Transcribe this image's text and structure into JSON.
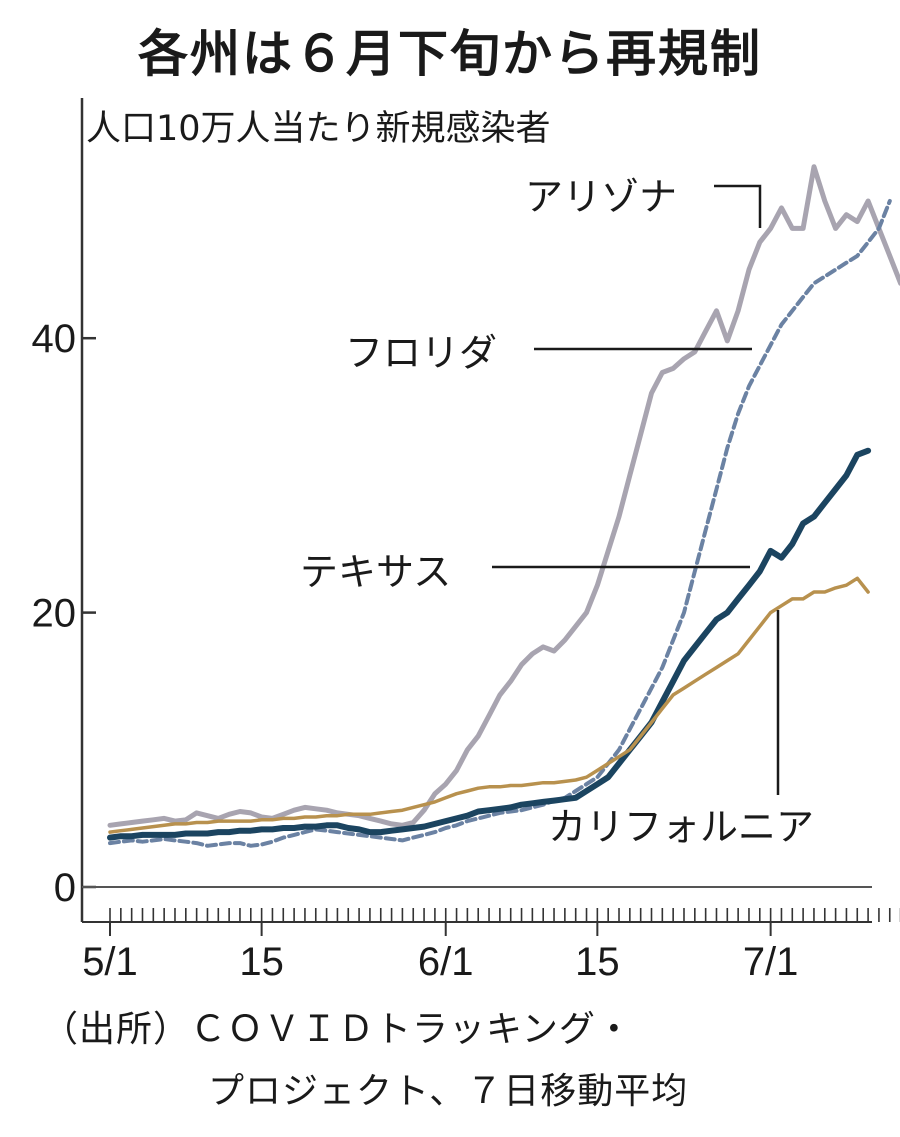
{
  "chart_data": {
    "type": "line",
    "title": "各州は６月下旬から再規制",
    "ylabel": "人口10万人当たり新規感染者",
    "xlabel": "",
    "ylim": [
      0,
      54
    ],
    "y_ticks": [
      0,
      20,
      40
    ],
    "x_ticks": [
      {
        "day": 0,
        "label": "5/1"
      },
      {
        "day": 14,
        "label": "15"
      },
      {
        "day": 31,
        "label": "6/1"
      },
      {
        "day": 45,
        "label": "15"
      },
      {
        "day": 61,
        "label": "7/1"
      }
    ],
    "x_start": "5/1",
    "grid": false,
    "series": [
      {
        "name": "アリゾナ",
        "color": "#a8a4b0",
        "style": "solid",
        "values": [
          4.5,
          4.6,
          4.7,
          4.8,
          4.9,
          5.0,
          4.8,
          4.9,
          5.4,
          5.2,
          5.0,
          5.3,
          5.5,
          5.4,
          5.1,
          5.0,
          5.3,
          5.6,
          5.8,
          5.7,
          5.6,
          5.4,
          5.3,
          5.2,
          5.0,
          4.8,
          4.6,
          4.5,
          4.7,
          5.6,
          6.8,
          7.5,
          8.5,
          10,
          11,
          12.5,
          14,
          15,
          16.2,
          17,
          17.5,
          17.2,
          18,
          19,
          20,
          22,
          24.5,
          27,
          30,
          33,
          36,
          37.5,
          37.8,
          38.5,
          39,
          40.5,
          42,
          39.8,
          42,
          45,
          47,
          48,
          49.5,
          48,
          48,
          52.5,
          50,
          48,
          49,
          48.5,
          50,
          48,
          46,
          44
        ]
      },
      {
        "name": "フロリダ",
        "color": "#6b82a3",
        "style": "dashed",
        "values": [
          3.2,
          3.3,
          3.4,
          3.3,
          3.4,
          3.5,
          3.4,
          3.3,
          3.2,
          3.0,
          3.1,
          3.2,
          3.2,
          3.0,
          3.1,
          3.3,
          3.6,
          3.8,
          4.0,
          4.2,
          4.1,
          4.0,
          3.9,
          3.8,
          3.7,
          3.6,
          3.5,
          3.4,
          3.6,
          3.8,
          4.0,
          4.3,
          4.5,
          4.8,
          5.0,
          5.2,
          5.4,
          5.5,
          5.6,
          5.8,
          6.0,
          6.3,
          6.5,
          7,
          7.5,
          8,
          9,
          10,
          11.5,
          13,
          14.5,
          16,
          18,
          20,
          23,
          26,
          29,
          32,
          34.5,
          36.5,
          38,
          39.5,
          41,
          42,
          43,
          44,
          44.5,
          45,
          45.5,
          46,
          47,
          48,
          50
        ]
      },
      {
        "name": "テキサス",
        "color": "#1b4460",
        "style": "solid",
        "values": [
          3.6,
          3.7,
          3.7,
          3.8,
          3.8,
          3.8,
          3.8,
          3.9,
          3.9,
          3.9,
          4.0,
          4.0,
          4.1,
          4.1,
          4.2,
          4.2,
          4.3,
          4.3,
          4.4,
          4.4,
          4.5,
          4.5,
          4.3,
          4.2,
          4.0,
          4.0,
          4.1,
          4.2,
          4.3,
          4.4,
          4.6,
          4.8,
          5.0,
          5.2,
          5.5,
          5.6,
          5.7,
          5.8,
          6.0,
          6.1,
          6.2,
          6.3,
          6.4,
          6.5,
          7,
          7.5,
          8,
          9,
          10,
          11,
          12,
          13.5,
          15,
          16.5,
          17.5,
          18.5,
          19.5,
          20,
          21,
          22,
          23,
          24.5,
          24,
          25,
          26.5,
          27,
          28,
          29,
          30,
          31.5,
          31.8
        ]
      },
      {
        "name": "カリフォルニア",
        "color": "#b8914e",
        "style": "solid",
        "values": [
          4.0,
          4.1,
          4.2,
          4.3,
          4.4,
          4.5,
          4.6,
          4.6,
          4.7,
          4.7,
          4.8,
          4.8,
          4.8,
          4.8,
          4.9,
          4.9,
          5.0,
          5.0,
          5.1,
          5.1,
          5.2,
          5.2,
          5.3,
          5.3,
          5.3,
          5.4,
          5.5,
          5.6,
          5.8,
          6.0,
          6.2,
          6.5,
          6.8,
          7.0,
          7.2,
          7.3,
          7.3,
          7.4,
          7.4,
          7.5,
          7.6,
          7.6,
          7.7,
          7.8,
          8,
          8.5,
          9,
          9.5,
          10,
          11,
          12,
          13,
          14,
          14.5,
          15,
          15.5,
          16,
          16.5,
          17,
          18,
          19,
          20,
          20.5,
          21,
          21,
          21.5,
          21.5,
          21.8,
          22,
          22.5,
          21.5
        ]
      }
    ],
    "labels": {
      "arizona": "アリゾナ",
      "florida": "フロリダ",
      "texas": "テキサス",
      "california": "カリフォルニア"
    },
    "source_line1": "（出所）ＣＯＶＩＤトラッキング・",
    "source_line2": "プロジェクト、７日移動平均"
  }
}
